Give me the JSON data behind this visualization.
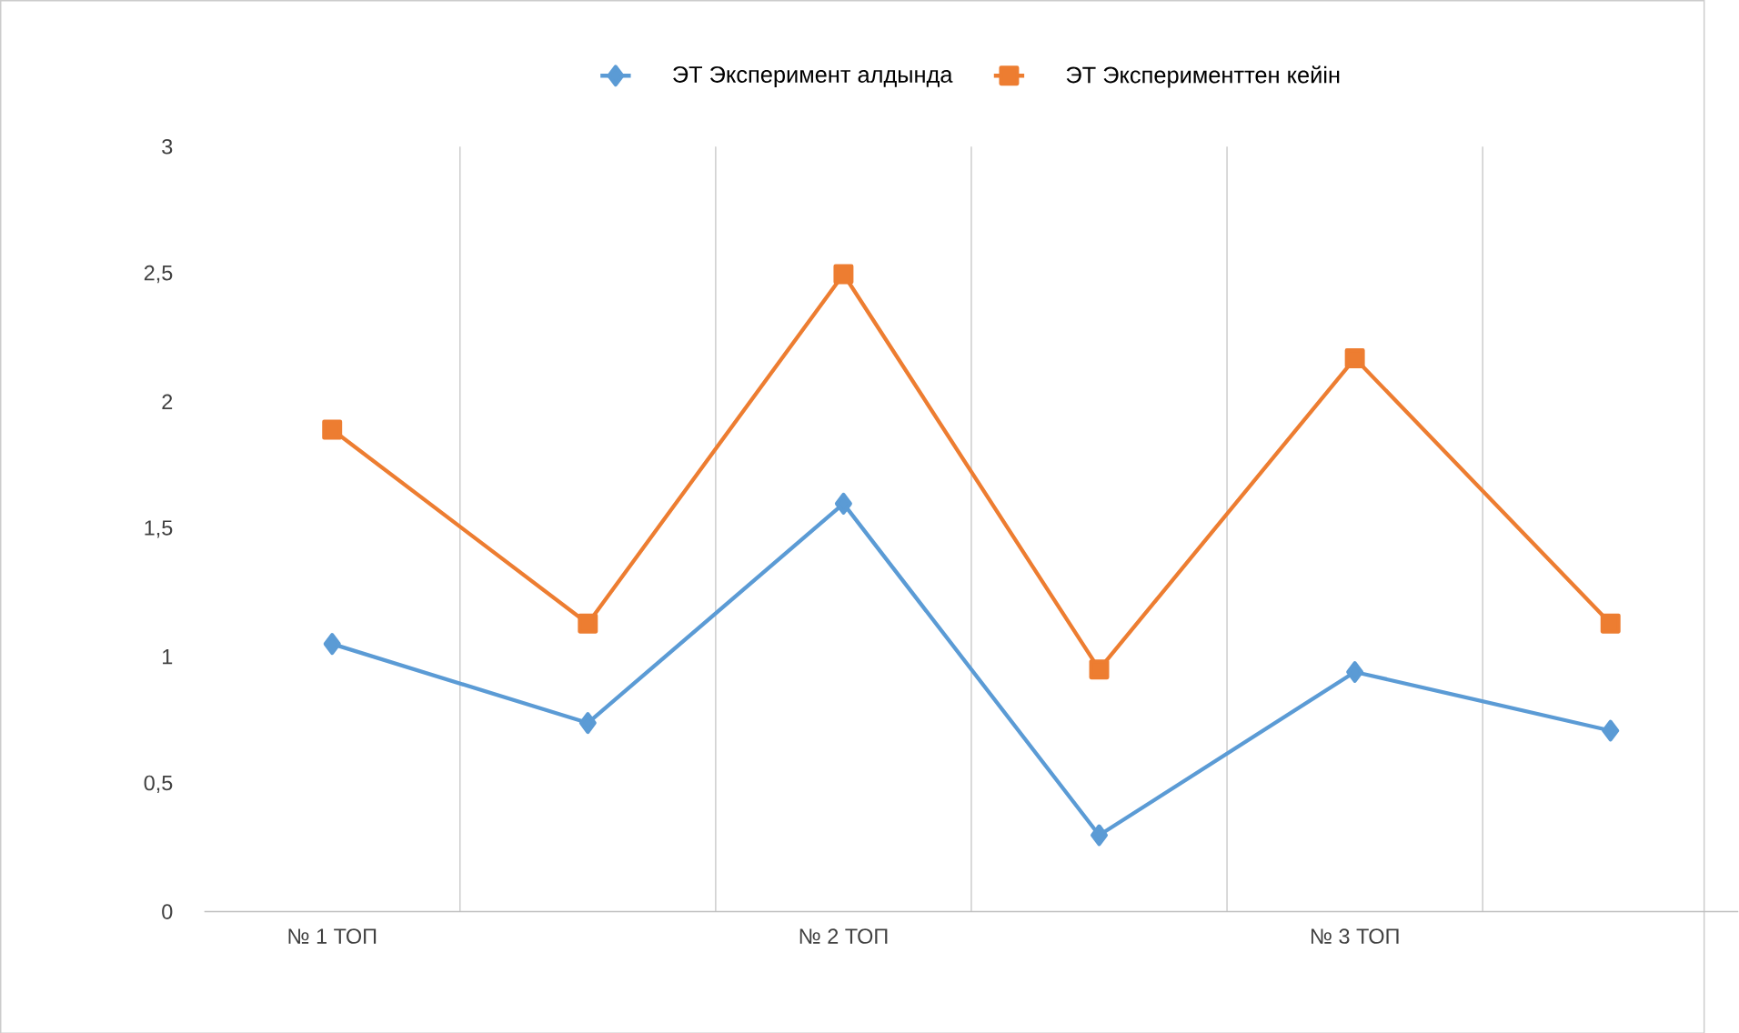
{
  "chart_data": {
    "type": "line",
    "categories": [
      "№ 1 ТОП",
      null,
      "№ 2 ТОП",
      null,
      "№ 3 ТОП",
      null
    ],
    "series": [
      {
        "name": "ЭТ Эксперимент алдында",
        "color": "#5b9bd5",
        "marker": "diamond",
        "values": [
          1.05,
          0.74,
          1.6,
          0.3,
          0.94,
          0.71
        ]
      },
      {
        "name": "ЭТ Эксперименттен кейін",
        "color": "#ed7d31",
        "marker": "square",
        "values": [
          1.89,
          1.13,
          2.5,
          0.95,
          2.17,
          1.13
        ]
      }
    ],
    "ylim": [
      0,
      3
    ],
    "yticks": [
      0,
      {
        "value": 0.5,
        "label": "0,5"
      },
      1,
      {
        "value": 1.5,
        "label": "1,5"
      },
      2,
      {
        "value": 2.5,
        "label": "2,5"
      },
      3
    ],
    "grid": "x",
    "legend": "top"
  }
}
